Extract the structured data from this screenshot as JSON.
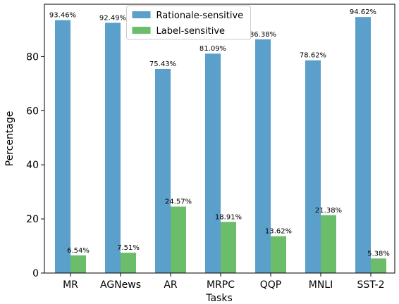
{
  "chart_data": {
    "type": "bar",
    "x_label": "Tasks",
    "y_label": "Percentage",
    "categories": [
      "MR",
      "AGNews",
      "AR",
      "MRPC",
      "QQP",
      "MNLI",
      "SST-2"
    ],
    "series": [
      {
        "name": "Rationale-sensitive",
        "color": "#5b9fcb",
        "values": [
          93.46,
          92.49,
          75.43,
          81.09,
          86.38,
          78.62,
          94.62
        ],
        "value_labels": [
          "93.46%",
          "92.49%",
          "75.43%",
          "81.09%",
          "86.38%",
          "78.62%",
          "94.62%"
        ]
      },
      {
        "name": "Label-sensitive",
        "color": "#6cbd6a",
        "values": [
          6.54,
          7.51,
          24.57,
          18.91,
          13.62,
          21.38,
          5.38
        ],
        "value_labels": [
          "6.54%",
          "7.51%",
          "24.57%",
          "18.91%",
          "13.62%",
          "21.38%",
          "5.38%"
        ]
      }
    ],
    "ylim": [
      0,
      99.35
    ],
    "yticks": [
      0,
      20,
      40,
      60,
      80
    ],
    "legend": "upper center"
  }
}
